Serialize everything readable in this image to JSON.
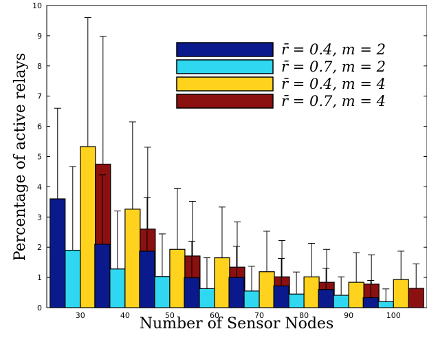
{
  "chart_data": {
    "type": "bar",
    "xlabel": "Number of Sensor Nodes",
    "ylabel": "Percentage of active relays",
    "ylim": [
      0,
      10
    ],
    "yticks": [
      "0",
      "1",
      "2",
      "3",
      "4",
      "5",
      "6",
      "7",
      "8",
      "9",
      "10"
    ],
    "categories": [
      "30",
      "40",
      "50",
      "60",
      "70",
      "80",
      "90",
      "100"
    ],
    "grid": false,
    "legend_position": "top-right",
    "error_bars": "upper only",
    "series": [
      {
        "name": "r̄ = 0.4, m = 2",
        "color": "#0a1a8c",
        "values": [
          3.6,
          2.1,
          1.87,
          0.99,
          1.0,
          0.72,
          0.6,
          0.33
        ],
        "upper": [
          6.6,
          4.4,
          3.65,
          2.2,
          2.03,
          1.63,
          1.3,
          0.9
        ]
      },
      {
        "name": "r̄ = 0.7, m = 2",
        "color": "#2fd8f0",
        "values": [
          1.9,
          1.28,
          1.03,
          0.63,
          0.55,
          0.45,
          0.41,
          0.2
        ],
        "upper": [
          4.67,
          3.2,
          2.44,
          1.65,
          1.37,
          1.18,
          1.02,
          0.62
        ]
      },
      {
        "name": "r̄ = 0.4, m = 4",
        "color": "#ffd21e",
        "values": [
          5.33,
          3.26,
          1.93,
          1.65,
          1.19,
          1.02,
          0.84,
          0.93
        ],
        "upper": [
          9.6,
          6.15,
          3.95,
          3.33,
          2.53,
          2.13,
          1.82,
          1.87
        ]
      },
      {
        "name": "r̄ = 0.7, m = 4",
        "color": "#8b1010",
        "values": [
          4.75,
          2.6,
          1.71,
          1.34,
          1.02,
          0.84,
          0.78,
          0.64
        ],
        "upper": [
          8.98,
          5.31,
          3.52,
          2.84,
          2.22,
          1.93,
          1.75,
          1.45
        ]
      }
    ]
  }
}
